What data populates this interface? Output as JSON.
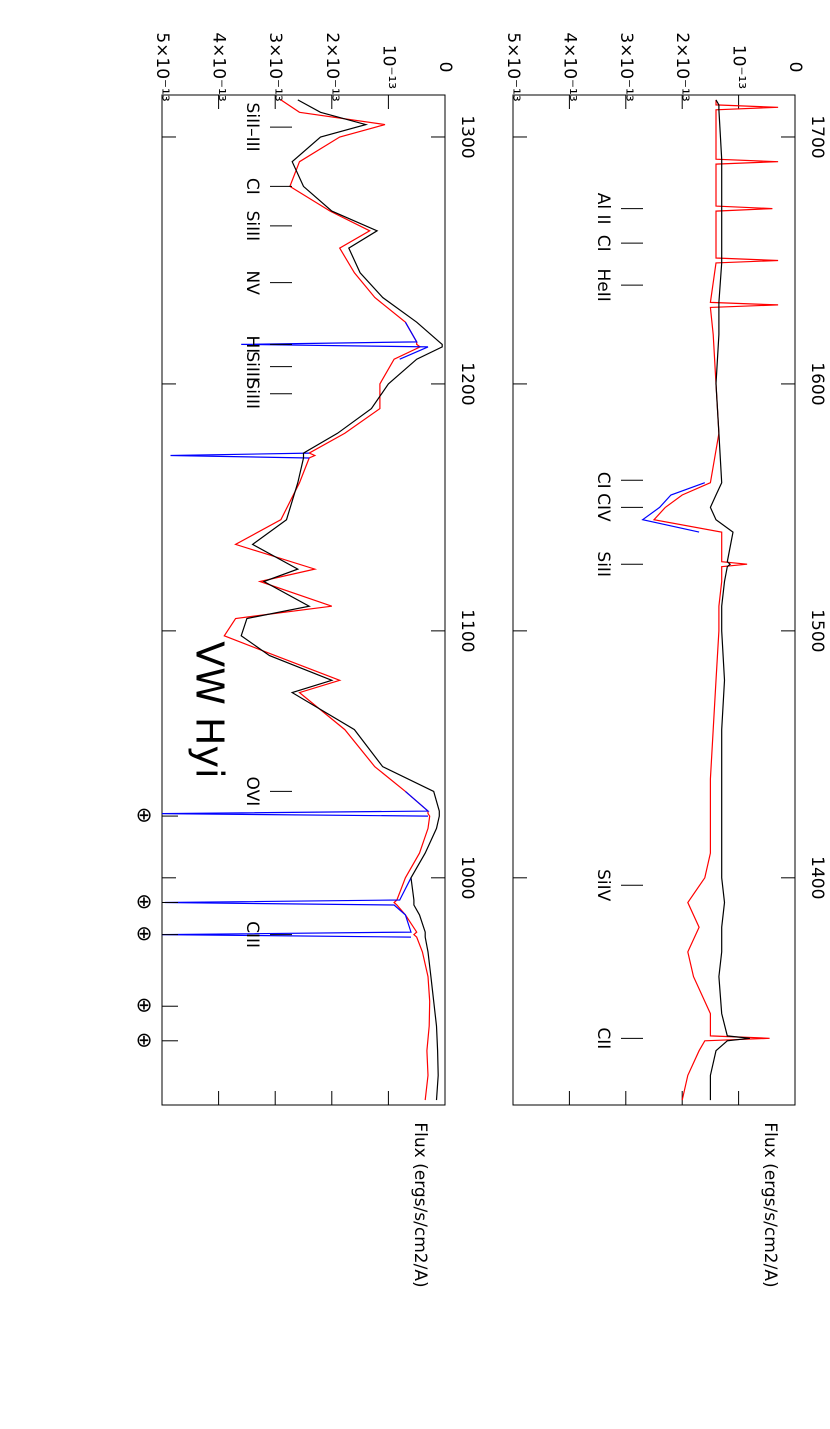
{
  "chart_data": [
    {
      "type": "line",
      "title": "VW Hyi",
      "y_label": "Flux (ergs/s/cm2/A)",
      "x": [
        910,
        920,
        930,
        940,
        950,
        960,
        970,
        976,
        977,
        978,
        985,
        989,
        990,
        991,
        1000,
        1010,
        1020,
        1025,
        1026,
        1027,
        1035,
        1045,
        1060,
        1075,
        1080,
        1090,
        1098,
        1105,
        1110,
        1120,
        1125,
        1135,
        1145,
        1160,
        1170,
        1171,
        1172,
        1180,
        1190,
        1200,
        1210,
        1215,
        1216,
        1217,
        1225,
        1235,
        1245,
        1255,
        1262,
        1270,
        1280,
        1290,
        1300,
        1305,
        1310,
        1315
      ],
      "series": [
        {
          "color": "#ff0000",
          "values": [
            3.5e-14,
            3e-14,
            3.2e-14,
            2.8e-14,
            2.7e-14,
            3e-14,
            4e-14,
            5e-14,
            5.5e-14,
            5e-14,
            7e-14,
            8.5e-14,
            9e-14,
            8.5e-14,
            7e-14,
            4.5e-14,
            3e-14,
            2.7e-14,
            3e-14,
            3e-14,
            7e-14,
            1.24e-13,
            1.77e-13,
            2.57e-13,
            1.86e-13,
            3e-13,
            3.9e-13,
            3.7e-13,
            2e-13,
            3.27e-13,
            2.3e-13,
            3.7e-13,
            2.9e-13,
            2.57e-13,
            2.4e-13,
            2.3e-13,
            2.4e-13,
            1.77e-13,
            1.15e-13,
            1.15e-13,
            9e-14,
            4.4e-14,
            5e-14,
            5e-14,
            7e-14,
            1.24e-13,
            1.6e-13,
            1.86e-13,
            1.33e-13,
            2.03e-13,
            2.74e-13,
            2.57e-13,
            1.86e-13,
            1.06e-13,
            2.57e-13,
            2.9e-13
          ]
        },
        {
          "color": "#0000ff",
          "values": [
            null,
            null,
            null,
            null,
            null,
            null,
            null,
            6e-14,
            5e-13,
            6e-14,
            7e-14,
            9e-14,
            4.95e-13,
            8e-14,
            6e-14,
            null,
            null,
            3e-14,
            5e-13,
            3e-14,
            7e-14,
            null,
            null,
            null,
            null,
            null,
            null,
            null,
            null,
            null,
            null,
            null,
            null,
            null,
            2.4e-13,
            4.85e-13,
            2.4e-13,
            null,
            null,
            null,
            8e-14,
            3e-14,
            3.6e-13,
            5e-14,
            7e-14,
            null,
            null,
            null,
            null,
            null,
            null,
            null,
            null,
            null,
            null,
            null
          ]
        },
        {
          "color": "#000000",
          "values": [
            1.5e-14,
            1.2e-14,
            1.3e-14,
            1.5e-14,
            2e-14,
            2.5e-14,
            3e-14,
            3.5e-14,
            3.5e-14,
            3.5e-14,
            4.5e-14,
            5.5e-14,
            5.5e-14,
            5.5e-14,
            6e-14,
            3.5e-14,
            1.5e-14,
            1e-14,
            1e-14,
            1e-14,
            2e-14,
            1.1e-13,
            1.6e-13,
            2.7e-13,
            2e-13,
            3.1e-13,
            3.6e-13,
            3.5e-13,
            2.4e-13,
            3.2e-13,
            2.6e-13,
            3.4e-13,
            2.8e-13,
            2.6e-13,
            2.5e-13,
            2.5e-13,
            2.5e-13,
            1.9e-13,
            1.3e-13,
            1e-13,
            5e-14,
            5e-15,
            5e-15,
            1e-14,
            5e-14,
            1.1e-13,
            1.5e-13,
            1.7e-13,
            1.2e-13,
            2e-13,
            2.5e-13,
            2.7e-13,
            2.2e-13,
            1.4e-13,
            2.2e-13,
            2.6e-13
          ]
        }
      ],
      "xlim": [
        908,
        1317
      ],
      "xticks": [
        1000,
        1100,
        1200,
        1300
      ],
      "ylim": [
        0,
        5e-13
      ],
      "yticks": [
        0,
        {
          "value": 1e-13,
          "label": "10⁻¹³"
        },
        {
          "value": 2e-13,
          "label": "2×10⁻¹³"
        },
        {
          "value": 3e-13,
          "label": "3×10⁻¹³"
        },
        {
          "value": 4e-13,
          "label": "4×10⁻¹³"
        },
        {
          "value": 5e-13,
          "label": "5×10⁻¹³"
        }
      ],
      "line_ids": [
        {
          "label": "CIII",
          "wavelength": 977
        },
        {
          "label": "OVI",
          "wavelength": 1035
        },
        {
          "label": "SiIII",
          "wavelength": 1196
        },
        {
          "label": "SiIII",
          "wavelength": 1207
        },
        {
          "label": "HI",
          "wavelength": 1216
        },
        {
          "label": "NV",
          "wavelength": 1241
        },
        {
          "label": "SiIII",
          "wavelength": 1264
        },
        {
          "label": "CI",
          "wavelength": 1280
        },
        {
          "label": "SiII–III",
          "wavelength": 1304
        }
      ],
      "geocoronal": [
        {
          "label": "⊕",
          "wavelength": 934
        },
        {
          "label": "⊕",
          "wavelength": 948
        },
        {
          "label": "⊕",
          "wavelength": 977
        },
        {
          "label": "⊕",
          "wavelength": 990
        },
        {
          "label": "⊕",
          "wavelength": 1025
        }
      ]
    },
    {
      "type": "line",
      "y_label": "Flux (ergs/s/cm2/A)",
      "x": [
        1310,
        1320,
        1330,
        1334,
        1335,
        1336,
        1345,
        1360,
        1370,
        1380,
        1390,
        1400,
        1410,
        1420,
        1440,
        1460,
        1480,
        1500,
        1510,
        1520,
        1526,
        1527,
        1528,
        1540,
        1545,
        1550,
        1555,
        1560,
        1580,
        1600,
        1620,
        1631,
        1632,
        1633,
        1649,
        1650,
        1651,
        1670,
        1671,
        1672,
        1689,
        1690,
        1691,
        1711,
        1712,
        1713,
        1715
      ],
      "series": [
        {
          "color": "#ff0000",
          "values": [
            2e-13,
            1.9e-13,
            1.7e-13,
            1.6e-13,
            4.5e-14,
            1.5e-13,
            1.5e-13,
            1.8e-13,
            1.9e-13,
            1.7e-13,
            1.9e-13,
            1.6e-13,
            1.5e-13,
            1.5e-13,
            1.5e-13,
            1.45e-13,
            1.4e-13,
            1.35e-13,
            1.35e-13,
            1.3e-13,
            1.3e-13,
            8.5e-14,
            1.3e-13,
            1.3e-13,
            2.5e-13,
            2.3e-13,
            2e-13,
            1.5e-13,
            1.35e-13,
            1.4e-13,
            1.45e-13,
            1.5e-13,
            3e-14,
            1.5e-13,
            1.4e-13,
            3e-14,
            1.4e-13,
            1.4e-13,
            4e-14,
            1.4e-13,
            1.4e-13,
            3e-14,
            1.4e-13,
            1.4e-13,
            3e-14,
            1.4e-13,
            1.4e-13
          ]
        },
        {
          "color": "#0000ff",
          "values": [
            null,
            null,
            null,
            null,
            null,
            null,
            null,
            null,
            null,
            null,
            null,
            null,
            null,
            null,
            null,
            null,
            null,
            null,
            null,
            null,
            null,
            null,
            null,
            1.7e-13,
            2.7e-13,
            2.4e-13,
            2.2e-13,
            1.6e-13,
            null,
            null,
            null,
            null,
            null,
            null,
            null,
            null,
            null,
            null,
            null,
            null,
            null,
            null,
            null,
            null,
            null,
            null,
            null
          ]
        },
        {
          "color": "#000000",
          "values": [
            1.5e-13,
            1.5e-13,
            1.4e-13,
            1.2e-13,
            8e-14,
            1.2e-13,
            1.3e-13,
            1.35e-13,
            1.3e-13,
            1.3e-13,
            1.25e-13,
            1.3e-13,
            1.3e-13,
            1.3e-13,
            1.3e-13,
            1.3e-13,
            1.25e-13,
            1.3e-13,
            1.3e-13,
            1.25e-13,
            1.2e-13,
            1.15e-13,
            1.2e-13,
            1.1e-13,
            1.4e-13,
            1.5e-13,
            1.4e-13,
            1.3e-13,
            1.35e-13,
            1.4e-13,
            1.35e-13,
            1.35e-13,
            1.35e-13,
            1.35e-13,
            1.3e-13,
            1.3e-13,
            1.3e-13,
            1.3e-13,
            1.3e-13,
            1.3e-13,
            1.3e-13,
            1.3e-13,
            1.3e-13,
            1.35e-13,
            1.35e-13,
            1.35e-13,
            1.4e-13
          ]
        }
      ],
      "xlim": [
        1308,
        1717
      ],
      "xticks": [
        1400,
        1500,
        1600,
        1700
      ],
      "ylim": [
        0,
        5e-13
      ],
      "yticks": [
        0,
        {
          "value": 1e-13,
          "label": "10⁻¹³"
        },
        {
          "value": 2e-13,
          "label": "2×10⁻¹³"
        },
        {
          "value": 3e-13,
          "label": "3×10⁻¹³"
        },
        {
          "value": 4e-13,
          "label": "4×10⁻¹³"
        },
        {
          "value": 5e-13,
          "label": "5×10⁻¹³"
        }
      ],
      "line_ids": [
        {
          "label": "CII",
          "wavelength": 1335
        },
        {
          "label": "SiIV",
          "wavelength": 1397
        },
        {
          "label": "SiII",
          "wavelength": 1527
        },
        {
          "label": "CIV",
          "wavelength": 1550
        },
        {
          "label": "CI",
          "wavelength": 1561
        },
        {
          "label": "HeII",
          "wavelength": 1640
        },
        {
          "label": "CI",
          "wavelength": 1657
        },
        {
          "label": "Al II",
          "wavelength": 1671
        }
      ]
    }
  ]
}
